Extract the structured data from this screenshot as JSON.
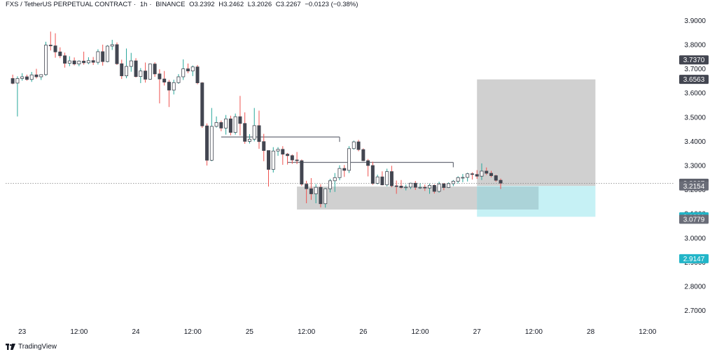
{
  "header": {
    "symbol": "FXS / TetherUS PERPETUAL CONTRACT",
    "interval": "1h",
    "exchange": "BINANCE",
    "open_label": "O",
    "open": "3.2392",
    "high_label": "H",
    "high": "3.2462",
    "low_label": "L",
    "low": "3.2026",
    "close_label": "C",
    "close": "3.2267",
    "change": "−0.0123 (−0.38%)"
  },
  "footer": {
    "brand": "TradingView",
    "logo_icon": "tradingview-logo-icon"
  },
  "chart_data": {
    "type": "candlestick",
    "y_axis": {
      "position": "right",
      "ticks": [
        "3.9000",
        "3.8000",
        "3.7000",
        "3.6000",
        "3.5000",
        "3.4000",
        "3.3000",
        "3.2000",
        "3.1000",
        "3.0000",
        "2.9000",
        "2.8000",
        "2.7000"
      ],
      "range": [
        2.65,
        3.95
      ]
    },
    "x_axis": {
      "ticks": [
        {
          "t": 2,
          "label": "23"
        },
        {
          "t": 14,
          "label": "12:00"
        },
        {
          "t": 26,
          "label": "24"
        },
        {
          "t": 38,
          "label": "12:00"
        },
        {
          "t": 50,
          "label": "25"
        },
        {
          "t": 62,
          "label": "12:00"
        },
        {
          "t": 74,
          "label": "26"
        },
        {
          "t": 86,
          "label": "12:00"
        },
        {
          "t": 98,
          "label": "27"
        },
        {
          "t": 110,
          "label": "12:00"
        },
        {
          "t": 122,
          "label": "28"
        },
        {
          "t": 134,
          "label": "12:00"
        }
      ],
      "range": [
        -1.5,
        139.5
      ]
    },
    "colors": {
      "up": "#ffffff",
      "down": "#434651",
      "wick_up": "#26a69a",
      "wick_down": "#ef5350",
      "outline": "#434651",
      "target_zone": "#c8c8c8",
      "stop_zone": "#c6f1f5",
      "overlap_zone": "#a7cfd5",
      "price_line": "#808080",
      "last_price_tag": "#5d606b",
      "stop_tag": "#22b5c8"
    },
    "candles": [
      [
        3.66,
        3.676,
        3.636,
        3.64
      ],
      [
        3.641,
        3.669,
        3.503,
        3.66
      ],
      [
        3.66,
        3.682,
        3.651,
        3.667
      ],
      [
        3.667,
        3.676,
        3.651,
        3.656
      ],
      [
        3.656,
        3.687,
        3.646,
        3.675
      ],
      [
        3.675,
        3.7,
        3.66,
        3.667
      ],
      [
        3.667,
        3.675,
        3.654,
        3.676
      ],
      [
        3.676,
        3.812,
        3.671,
        3.798
      ],
      [
        3.798,
        3.854,
        3.776,
        3.795
      ],
      [
        3.795,
        3.847,
        3.746,
        3.77
      ],
      [
        3.77,
        3.789,
        3.744,
        3.754
      ],
      [
        3.754,
        3.767,
        3.705,
        3.723
      ],
      [
        3.723,
        3.752,
        3.711,
        3.733
      ],
      [
        3.733,
        3.747,
        3.714,
        3.72
      ],
      [
        3.72,
        3.735,
        3.711,
        3.732
      ],
      [
        3.732,
        3.771,
        3.717,
        3.725
      ],
      [
        3.725,
        3.748,
        3.719,
        3.734
      ],
      [
        3.734,
        3.749,
        3.716,
        3.727
      ],
      [
        3.727,
        3.781,
        3.718,
        3.771
      ],
      [
        3.771,
        3.8,
        3.713,
        3.73
      ],
      [
        3.73,
        3.798,
        3.727,
        3.794
      ],
      [
        3.794,
        3.82,
        3.778,
        3.8
      ],
      [
        3.8,
        3.809,
        3.716,
        3.721
      ],
      [
        3.721,
        3.738,
        3.658,
        3.671
      ],
      [
        3.671,
        3.784,
        3.661,
        3.71
      ],
      [
        3.71,
        3.766,
        3.688,
        3.733
      ],
      [
        3.733,
        3.744,
        3.664,
        3.668
      ],
      [
        3.668,
        3.703,
        3.641,
        3.691
      ],
      [
        3.691,
        3.726,
        3.643,
        3.657
      ],
      [
        3.657,
        3.721,
        3.655,
        3.72
      ],
      [
        3.72,
        3.727,
        3.667,
        3.679
      ],
      [
        3.679,
        3.698,
        3.557,
        3.658
      ],
      [
        3.658,
        3.691,
        3.631,
        3.645
      ],
      [
        3.645,
        3.654,
        3.542,
        3.612
      ],
      [
        3.612,
        3.655,
        3.594,
        3.643
      ],
      [
        3.643,
        3.678,
        3.638,
        3.667
      ],
      [
        3.667,
        3.739,
        3.654,
        3.7
      ],
      [
        3.7,
        3.722,
        3.682,
        3.691
      ],
      [
        3.691,
        3.714,
        3.67,
        3.708
      ],
      [
        3.708,
        3.716,
        3.636,
        3.642
      ],
      [
        3.642,
        3.645,
        3.456,
        3.464
      ],
      [
        3.464,
        3.474,
        3.3,
        3.322
      ],
      [
        3.322,
        3.538,
        3.318,
        3.462
      ],
      [
        3.462,
        3.503,
        3.457,
        3.478
      ],
      [
        3.478,
        3.486,
        3.442,
        3.455
      ],
      [
        3.455,
        3.509,
        3.428,
        3.493
      ],
      [
        3.493,
        3.506,
        3.425,
        3.437
      ],
      [
        3.437,
        3.515,
        3.428,
        3.502
      ],
      [
        3.502,
        3.588,
        3.424,
        3.474
      ],
      [
        3.474,
        3.52,
        3.39,
        3.4
      ],
      [
        3.4,
        3.43,
        3.391,
        3.409
      ],
      [
        3.409,
        3.538,
        3.4,
        3.465
      ],
      [
        3.465,
        3.527,
        3.369,
        3.399
      ],
      [
        3.399,
        3.431,
        3.318,
        3.362
      ],
      [
        3.362,
        3.362,
        3.213,
        3.284
      ],
      [
        3.284,
        3.376,
        3.271,
        3.36
      ],
      [
        3.36,
        3.376,
        3.34,
        3.367
      ],
      [
        3.367,
        3.38,
        3.303,
        3.347
      ],
      [
        3.347,
        3.352,
        3.304,
        3.341
      ],
      [
        3.341,
        3.346,
        3.307,
        3.323
      ],
      [
        3.323,
        3.356,
        3.306,
        3.32
      ],
      [
        3.32,
        3.325,
        3.216,
        3.223
      ],
      [
        3.223,
        3.237,
        3.144,
        3.204
      ],
      [
        3.204,
        3.248,
        3.158,
        3.183
      ],
      [
        3.183,
        3.223,
        3.144,
        3.21
      ],
      [
        3.21,
        3.223,
        3.127,
        3.142
      ],
      [
        3.142,
        3.207,
        3.126,
        3.204
      ],
      [
        3.204,
        3.245,
        3.189,
        3.237
      ],
      [
        3.237,
        3.269,
        3.191,
        3.25
      ],
      [
        3.25,
        3.301,
        3.239,
        3.288
      ],
      [
        3.288,
        3.302,
        3.253,
        3.28
      ],
      [
        3.28,
        3.38,
        3.269,
        3.37
      ],
      [
        3.37,
        3.403,
        3.366,
        3.398
      ],
      [
        3.398,
        3.406,
        3.359,
        3.366
      ],
      [
        3.366,
        3.371,
        3.318,
        3.32
      ],
      [
        3.32,
        3.327,
        3.255,
        3.3
      ],
      [
        3.3,
        3.316,
        3.22,
        3.226
      ],
      [
        3.226,
        3.262,
        3.222,
        3.253
      ],
      [
        3.253,
        3.276,
        3.218,
        3.22
      ],
      [
        3.22,
        3.287,
        3.214,
        3.275
      ],
      [
        3.275,
        3.299,
        3.21,
        3.216
      ],
      [
        3.216,
        3.238,
        3.183,
        3.215
      ],
      [
        3.215,
        3.24,
        3.204,
        3.209
      ],
      [
        3.209,
        3.221,
        3.197,
        3.211
      ],
      [
        3.211,
        3.229,
        3.203,
        3.227
      ],
      [
        3.227,
        3.236,
        3.199,
        3.21
      ],
      [
        3.21,
        3.226,
        3.203,
        3.21
      ],
      [
        3.21,
        3.221,
        3.195,
        3.207
      ],
      [
        3.207,
        3.225,
        3.183,
        3.218
      ],
      [
        3.218,
        3.222,
        3.184,
        3.193
      ],
      [
        3.193,
        3.233,
        3.188,
        3.224
      ],
      [
        3.224,
        3.228,
        3.198,
        3.209
      ],
      [
        3.209,
        3.23,
        3.207,
        3.225
      ],
      [
        3.225,
        3.24,
        3.215,
        3.235
      ],
      [
        3.235,
        3.256,
        3.226,
        3.25
      ],
      [
        3.25,
        3.265,
        3.231,
        3.251
      ],
      [
        3.251,
        3.27,
        3.234,
        3.266
      ],
      [
        3.266,
        3.272,
        3.242,
        3.263
      ],
      [
        3.263,
        3.281,
        3.245,
        3.256
      ],
      [
        3.256,
        3.309,
        3.24,
        3.277
      ],
      [
        3.277,
        3.292,
        3.261,
        3.268
      ],
      [
        3.268,
        3.278,
        3.251,
        3.258
      ],
      [
        3.258,
        3.262,
        3.233,
        3.239
      ],
      [
        3.239,
        3.246,
        3.203,
        3.227
      ]
    ],
    "annotations": {
      "supply_levels": [
        {
          "price": 3.418,
          "from_t": 44,
          "to_t": 69
        },
        {
          "price": 3.313,
          "from_t": 58,
          "to_t": 93
        }
      ],
      "demand_zone": {
        "top": 3.213,
        "bottom": 3.118,
        "from_t": 60,
        "to_t": 111
      },
      "position": {
        "entry": 3.2154,
        "target": 3.6563,
        "stop": 3.0881,
        "from_t": 98,
        "to_t": 123
      },
      "last_price": 3.2267
    },
    "price_tags": [
      {
        "price": 3.737,
        "label": "3.7370",
        "color": "#434651"
      },
      {
        "price": 3.6563,
        "label": "3.6563",
        "color": "#434651"
      },
      {
        "price": 3.2267,
        "label": "3.2267",
        "color": "#5d606b"
      },
      {
        "price": 3.2154,
        "label": "3.2154",
        "color": "#6a6d78"
      },
      {
        "price": 3.0881,
        "label": "3.0881",
        "color": "#22b5c8"
      },
      {
        "price": 3.0779,
        "label": "3.0779",
        "color": "#6a6d78"
      },
      {
        "price": 2.9147,
        "label": "2.9147",
        "color": "#22b5c8"
      }
    ]
  }
}
